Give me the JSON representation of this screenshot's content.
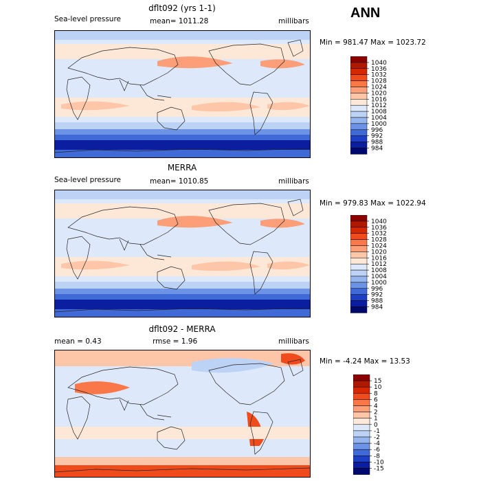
{
  "season_label": "ANN",
  "colors": {
    "slp_scale": [
      "#8b0000",
      "#b01800",
      "#d62800",
      "#ef4b1c",
      "#f97748",
      "#fc9f78",
      "#fdc6a8",
      "#fde8d8",
      "#dde9fb",
      "#bdd3f6",
      "#95b5ef",
      "#6d93e6",
      "#3f6ad8",
      "#1d3fc4",
      "#0b1e9f",
      "#000a6e"
    ],
    "diff_scale": [
      "#8b0000",
      "#b01800",
      "#d62800",
      "#ef4b1c",
      "#f97748",
      "#fc9f78",
      "#fdc6a8",
      "#fde8d8",
      "#dde9fb",
      "#bdd3f6",
      "#95b5ef",
      "#6d93e6",
      "#3f6ad8",
      "#1d3fc4",
      "#0b1e9f",
      "#000a6e"
    ],
    "land": "#222222"
  },
  "chart_data": [
    {
      "type": "heatmap",
      "title": "dflt092 (yrs 1-1)",
      "variable": "Sea-level pressure",
      "units": "millibars",
      "stat_text": "mean= 1011.28",
      "minmax_text": "Min = 981.47 Max = 1023.72",
      "min": 981.47,
      "max": 1023.72,
      "mean": 1011.28,
      "colorbar_levels": [
        "1040",
        "1036",
        "1032",
        "1028",
        "1024",
        "1020",
        "1016",
        "1012",
        "1008",
        "1004",
        "1000",
        "996",
        "992",
        "988",
        "984"
      ]
    },
    {
      "type": "heatmap",
      "title": "MERRA",
      "variable": "Sea-level pressure",
      "units": "millibars",
      "stat_text": "mean= 1010.85",
      "minmax_text": "Min = 979.83 Max = 1022.94",
      "min": 979.83,
      "max": 1022.94,
      "mean": 1010.85,
      "colorbar_levels": [
        "1040",
        "1036",
        "1032",
        "1028",
        "1024",
        "1020",
        "1016",
        "1012",
        "1008",
        "1004",
        "1000",
        "996",
        "992",
        "988",
        "984"
      ]
    },
    {
      "type": "heatmap",
      "title": "dflt092 - MERRA",
      "mean_text": "mean =    0.43",
      "rmse_text": "rmse =    1.96",
      "units": "millibars",
      "minmax_text": "Min =  -4.24 Max =   13.53",
      "min": -4.24,
      "max": 13.53,
      "mean": 0.43,
      "rmse": 1.96,
      "colorbar_levels": [
        "15",
        "10",
        "8",
        "6",
        "4",
        "2",
        "1",
        "0",
        "-1",
        "-2",
        "-4",
        "-6",
        "-8",
        "-10",
        "-15"
      ]
    }
  ]
}
